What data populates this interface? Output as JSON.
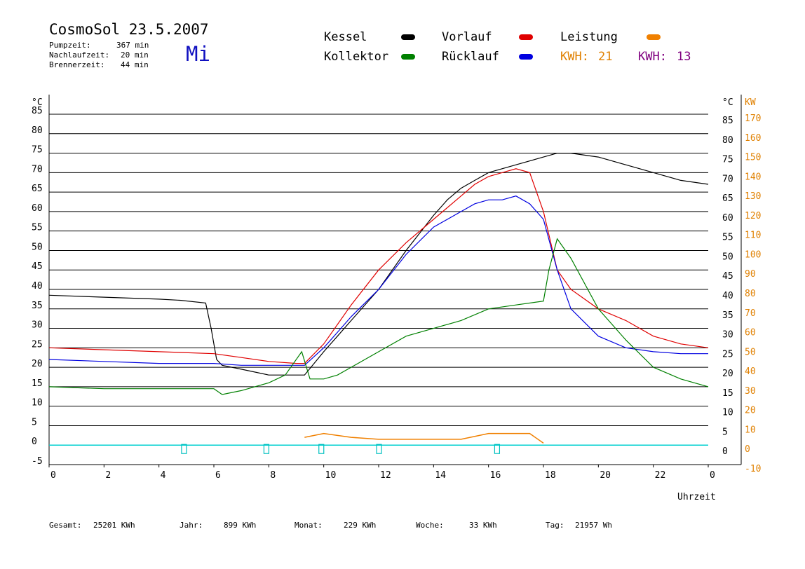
{
  "header": {
    "title": "CosmoSol 23.5.2007",
    "day": "Mi",
    "stats": [
      {
        "label": "Pumpzeit:",
        "value": "367 min"
      },
      {
        "label": "Nachlaufzeit:",
        "value": "20 min"
      },
      {
        "label": "Brennerzeit:",
        "value": "44 min"
      }
    ]
  },
  "legend": {
    "kessel": {
      "label": "Kessel",
      "color": "#000000"
    },
    "vorlauf": {
      "label": "Vorlauf",
      "color": "#e00000"
    },
    "leistung": {
      "label": "Leistung",
      "color": "#f08000"
    },
    "kollektor": {
      "label": "Kollektor",
      "color": "#008000"
    },
    "ruecklauf": {
      "label": "Rücklauf",
      "color": "#0000e0"
    },
    "kwh1": {
      "label": "KWH:",
      "value": "21",
      "color": "#e08000"
    },
    "kwh2": {
      "label": "KWH:",
      "value": "13",
      "color": "#800080"
    }
  },
  "footer": {
    "gesamt": {
      "label": "Gesamt:",
      "value": "25201 KWh"
    },
    "jahr": {
      "label": "Jahr:",
      "value": "899 KWh"
    },
    "monat": {
      "label": "Monat:",
      "value": "229 KWh"
    },
    "woche": {
      "label": "Woche:",
      "value": "33 KWh"
    },
    "tag": {
      "label": "Tag:",
      "value": "21957 Wh"
    }
  },
  "chart_data": {
    "type": "line",
    "xlabel": "Uhrzeit",
    "ylabel_left": "°C",
    "ylabel_right_temp": "°C",
    "ylabel_right_power": "KW",
    "xlim": [
      0,
      24
    ],
    "ylim": [
      -5,
      85
    ],
    "grid": "horizontal",
    "x_ticks": [
      "0",
      "2",
      "4",
      "6",
      "8",
      "10",
      "12",
      "14",
      "16",
      "18",
      "20",
      "22",
      "0"
    ],
    "y_ticks_left": [
      "85",
      "80",
      "75",
      "70",
      "65",
      "60",
      "55",
      "50",
      "45",
      "40",
      "35",
      "30",
      "25",
      "20",
      "15",
      "10",
      "5",
      "0",
      "-5"
    ],
    "y_ticks_right_temp": [
      "85",
      "80",
      "75",
      "70",
      "65",
      "60",
      "55",
      "50",
      "45",
      "40",
      "35",
      "30",
      "25",
      "20",
      "15",
      "10",
      "5",
      "0"
    ],
    "y_ticks_right_power": [
      "170",
      "160",
      "150",
      "140",
      "130",
      "120",
      "110",
      "100",
      "90",
      "80",
      "70",
      "60",
      "50",
      "40",
      "30",
      "20",
      "10",
      "0",
      "-10"
    ],
    "series": [
      {
        "name": "Kessel",
        "color": "#000000",
        "x": [
          0,
          2,
          4,
          4.8,
          5.7,
          5.9,
          6.1,
          6.3,
          7,
          8,
          9.3,
          10,
          10.5,
          11,
          12,
          13,
          14,
          14.5,
          15,
          15.5,
          16,
          17,
          18,
          18.5,
          19,
          20,
          21,
          22,
          23,
          24
        ],
        "y": [
          38.5,
          38,
          37.5,
          37.2,
          36.5,
          30,
          22,
          20.5,
          19.5,
          18,
          18,
          24,
          28,
          32,
          40,
          50,
          59,
          63,
          66,
          68,
          70,
          72,
          74,
          75,
          75,
          74,
          72,
          70,
          68,
          67
        ]
      },
      {
        "name": "Vorlauf",
        "color": "#e00000",
        "x": [
          0,
          2,
          4,
          6,
          7,
          8,
          9,
          9.3,
          10,
          10.5,
          11,
          12,
          13,
          14,
          15,
          15.5,
          16,
          16.5,
          17,
          17.5,
          18,
          18.5,
          19,
          20,
          21,
          22,
          23,
          24
        ],
        "y": [
          25,
          24.5,
          24,
          23.5,
          22.5,
          21.5,
          21,
          21,
          26,
          31,
          36,
          45,
          52,
          58,
          64,
          67,
          69,
          70,
          71,
          70,
          60,
          45,
          40,
          35,
          32,
          28,
          26,
          25
        ]
      },
      {
        "name": "Rücklauf",
        "color": "#0000e0",
        "x": [
          0,
          2,
          4,
          6,
          7,
          8,
          9,
          9.3,
          10,
          10.5,
          11,
          12,
          13,
          14,
          15,
          15.5,
          16,
          16.5,
          17,
          17.5,
          18,
          18.5,
          19,
          20,
          21,
          22,
          23,
          24
        ],
        "y": [
          22,
          21.5,
          21,
          21,
          20.5,
          20.5,
          20.5,
          20.5,
          25,
          29,
          33,
          40,
          49,
          56,
          60,
          62,
          63,
          63,
          64,
          62,
          58,
          45,
          35,
          28,
          25,
          24,
          23.5,
          23.5
        ]
      },
      {
        "name": "Kollektor",
        "color": "#008000",
        "x": [
          0,
          2,
          4,
          6,
          6.3,
          7,
          8,
          8.6,
          9.2,
          9.5,
          10,
          10.5,
          11,
          11.5,
          12,
          13,
          14,
          15,
          16,
          17,
          18,
          18.2,
          18.5,
          19,
          20,
          21,
          22,
          23,
          24
        ],
        "y": [
          15,
          14.5,
          14.5,
          14.5,
          13,
          14,
          16,
          18,
          24,
          17,
          17,
          18,
          20,
          22,
          24,
          28,
          30,
          32,
          35,
          36,
          37,
          45,
          53,
          48,
          35,
          27,
          20,
          17,
          15
        ]
      }
    ],
    "leistung": {
      "name": "Leistung",
      "color": "#f08000",
      "x": [
        9.3,
        10,
        11,
        12,
        13,
        14,
        15,
        16,
        16.5,
        17,
        17.5,
        18
      ],
      "y": [
        2,
        3,
        2,
        1.5,
        1.5,
        1.5,
        1.5,
        3,
        3,
        3,
        3,
        0.5
      ]
    }
  }
}
